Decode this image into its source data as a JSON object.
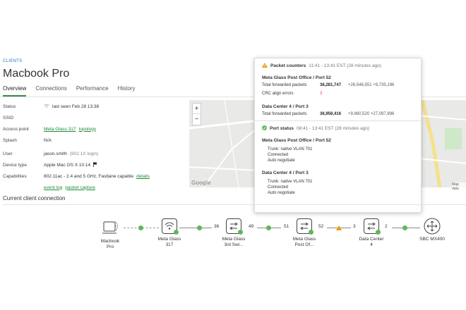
{
  "breadcrumb": "CLIENTS",
  "page_title": "Macbook Pro",
  "tabs": [
    {
      "label": "Overview",
      "active": true
    },
    {
      "label": "Connections",
      "active": false
    },
    {
      "label": "Performance",
      "active": false
    },
    {
      "label": "History",
      "active": false
    }
  ],
  "properties": {
    "status_label": "Status",
    "status_value": "last seen Feb 28 13:38",
    "ssid_label": "SSID",
    "ssid_value": "",
    "access_point_label": "Access point",
    "access_point_value": "Meta Glass 317",
    "access_point_link": "topology",
    "splash_label": "Splash",
    "splash_value": "N/A",
    "user_label": "User",
    "user_value": "jason.smith",
    "user_note": "(802.1X login)",
    "device_type_label": "Device type",
    "device_type_value": "Apple Mac OS X 10.14",
    "capabilities_label": "Capabilities",
    "capabilities_value": "802.11ac - 2.4 and 5 GHz, Fastlane capable",
    "details_link": "details",
    "event_log_link": "event log",
    "packet_capture_link": "packet capture"
  },
  "map": {
    "zoom_in": "+",
    "zoom_out": "−",
    "google": "Google",
    "map_data": "Map data"
  },
  "popup": {
    "packet_counters": {
      "title": "Packet counters",
      "time": "11:41 - 13:41 EST (28 minutes ago)",
      "port1_title": "Meta Glass Post Office / Port 52",
      "forwarded_label": "Total forwarded packets",
      "port1_forwarded": "36,281,747",
      "port1_delta": "+26,546,551 +9,735,196",
      "crc_label": "CRC align errors",
      "crc_value": "3",
      "port2_title": "Data Center 4 / Port 3",
      "port2_forwarded": "36,958,416",
      "port2_delta": "+9,860,520 +27,097,896"
    },
    "port_status": {
      "title": "Port status",
      "time": "08:41 - 13:41 EST (28 minutes ago)",
      "port1_title": "Meta Glass Post Office / Port 52",
      "port1_lines": [
        "Trunk: native VLAN 701",
        "Connected",
        "Auto negotiate"
      ],
      "port2_title": "Data Center 4 / Port 3",
      "port2_lines": [
        "Trunk: native VLAN 701",
        "Connected",
        "Auto negotiate"
      ]
    }
  },
  "connection": {
    "section_title": "Current client connection",
    "nodes": [
      {
        "label1": "Macbook",
        "label2": "Pro"
      },
      {
        "label1": "Meta Glass",
        "label2": "317"
      },
      {
        "label1": "Meta Glass",
        "label2": "3rd Swi..."
      },
      {
        "label1": "Meta Glass",
        "label2": "Post Of..."
      },
      {
        "label1": "Data Center",
        "label2": "4"
      },
      {
        "label1": "SBC MX400",
        "label2": ""
      }
    ],
    "port_numbers": [
      "36",
      "49",
      "51",
      "52",
      "3",
      "2"
    ]
  },
  "colors": {
    "accent_green": "#3a8a48",
    "link_blue": "#2a6fc9",
    "warning_orange": "#e5a100",
    "error_red": "#d9534f"
  }
}
